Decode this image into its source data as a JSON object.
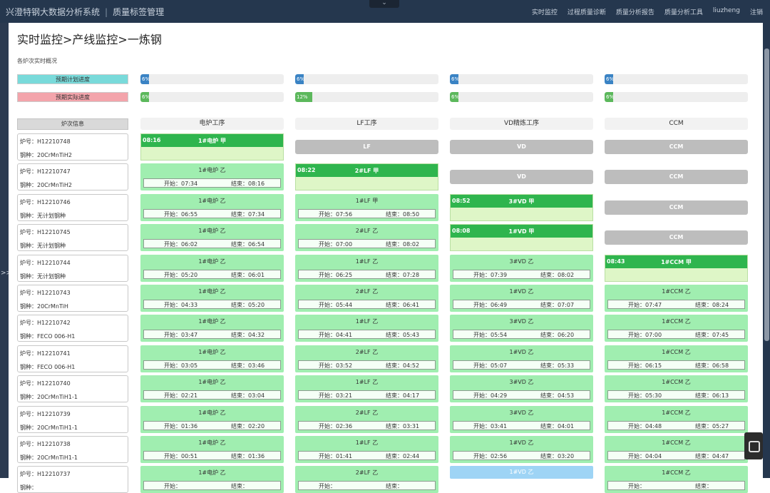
{
  "header": {
    "app_title": "兴澄特钢大数据分析系统",
    "separator": "|",
    "module_title": "质量标签管理",
    "collapse_glyph": "⌄",
    "nav": [
      "实时监控",
      "过程质量诊断",
      "质量分析报告",
      "质量分析工具",
      "liuzheng",
      "注销"
    ]
  },
  "sidebar": {
    "expand_glyph": ">>"
  },
  "page": {
    "breadcrumb": "实时监控>产线监控>一炼钢",
    "section_label": "各炉次实时概况",
    "legend_plan": "预期计划进度",
    "legend_actual": "预期实际进度",
    "info_header": "炉次信息"
  },
  "progress": {
    "plan": [
      6,
      6,
      6,
      6
    ],
    "actual": [
      6,
      12,
      6,
      6
    ],
    "plan_labels": [
      "6%",
      "6%",
      "6%",
      "6%"
    ],
    "actual_labels": [
      "6%",
      "12%",
      "6%",
      "6%"
    ]
  },
  "colors": {
    "plan_bar": "#3a83c4",
    "actual_bar": "#5cb85c",
    "active_header": "#2fb54e",
    "done_cell": "#a0eeb0",
    "pending_cell": "#bdbdbd"
  },
  "stages": [
    "电炉工序",
    "LF工序",
    "VD精炼工序",
    "CCM"
  ],
  "labels": {
    "furnace_prefix": "炉号：",
    "steel_prefix": "钢种：",
    "start_prefix": "开始：",
    "end_prefix": "结束："
  },
  "rows": [
    {
      "furnace": "H12210748",
      "steel": "20CrMnTiH2",
      "cells": [
        {
          "type": "active",
          "time": "08:16",
          "name": "1#电炉 甲"
        },
        {
          "type": "pending",
          "name": "LF"
        },
        {
          "type": "pending",
          "name": "VD"
        },
        {
          "type": "pending",
          "name": "CCM"
        }
      ]
    },
    {
      "furnace": "H12210747",
      "steel": "20CrMnTiH2",
      "cells": [
        {
          "type": "done",
          "name": "1#电炉 乙",
          "start": "07:34",
          "end": "08:16"
        },
        {
          "type": "active",
          "time": "08:22",
          "name": "2#LF 甲"
        },
        {
          "type": "pending",
          "name": "VD"
        },
        {
          "type": "pending",
          "name": "CCM"
        }
      ]
    },
    {
      "furnace": "H12210746",
      "steel": "无计划钢种",
      "cells": [
        {
          "type": "done",
          "name": "1#电炉 乙",
          "start": "06:55",
          "end": "07:34"
        },
        {
          "type": "done",
          "name": "1#LF 甲",
          "start": "07:56",
          "end": "08:50"
        },
        {
          "type": "active",
          "time": "08:52",
          "name": "3#VD 甲"
        },
        {
          "type": "pending",
          "name": "CCM"
        }
      ]
    },
    {
      "furnace": "H12210745",
      "steel": "无计划钢种",
      "cells": [
        {
          "type": "done",
          "name": "1#电炉 乙",
          "start": "06:02",
          "end": "06:54"
        },
        {
          "type": "done",
          "name": "2#LF 乙",
          "start": "07:00",
          "end": "08:02"
        },
        {
          "type": "active",
          "time": "08:08",
          "name": "1#VD 甲"
        },
        {
          "type": "pending",
          "name": "CCM"
        }
      ]
    },
    {
      "furnace": "H12210744",
      "steel": "无计划钢种",
      "cells": [
        {
          "type": "done",
          "name": "1#电炉 乙",
          "start": "05:20",
          "end": "06:01"
        },
        {
          "type": "done",
          "name": "1#LF 乙",
          "start": "06:25",
          "end": "07:28"
        },
        {
          "type": "done",
          "name": "3#VD 乙",
          "start": "07:39",
          "end": "08:02"
        },
        {
          "type": "active",
          "time": "08:43",
          "name": "1#CCM 甲"
        }
      ]
    },
    {
      "furnace": "H12210743",
      "steel": "20CrMnTiH",
      "cells": [
        {
          "type": "done",
          "name": "1#电炉 乙",
          "start": "04:33",
          "end": "05:20"
        },
        {
          "type": "done",
          "name": "2#LF 乙",
          "start": "05:44",
          "end": "06:41"
        },
        {
          "type": "done",
          "name": "1#VD 乙",
          "start": "06:49",
          "end": "07:07"
        },
        {
          "type": "done",
          "name": "1#CCM 乙",
          "start": "07:47",
          "end": "08:24"
        }
      ]
    },
    {
      "furnace": "H12210742",
      "steel": "FECO 006-H1",
      "cells": [
        {
          "type": "done",
          "name": "1#电炉 乙",
          "start": "03:47",
          "end": "04:32"
        },
        {
          "type": "done",
          "name": "1#LF 乙",
          "start": "04:41",
          "end": "05:43"
        },
        {
          "type": "done",
          "name": "3#VD 乙",
          "start": "05:54",
          "end": "06:20"
        },
        {
          "type": "done",
          "name": "1#CCM 乙",
          "start": "07:00",
          "end": "07:45"
        }
      ]
    },
    {
      "furnace": "H12210741",
      "steel": "FECO 006-H1",
      "cells": [
        {
          "type": "done",
          "name": "1#电炉 乙",
          "start": "03:05",
          "end": "03:46"
        },
        {
          "type": "done",
          "name": "2#LF 乙",
          "start": "03:52",
          "end": "04:52"
        },
        {
          "type": "done",
          "name": "1#VD 乙",
          "start": "05:07",
          "end": "05:33"
        },
        {
          "type": "done",
          "name": "1#CCM 乙",
          "start": "06:15",
          "end": "06:58"
        }
      ]
    },
    {
      "furnace": "H12210740",
      "steel": "20CrMnTiH1-1",
      "cells": [
        {
          "type": "done",
          "name": "1#电炉 乙",
          "start": "02:21",
          "end": "03:04"
        },
        {
          "type": "done",
          "name": "1#LF 乙",
          "start": "03:21",
          "end": "04:17"
        },
        {
          "type": "done",
          "name": "3#VD 乙",
          "start": "04:29",
          "end": "04:53"
        },
        {
          "type": "done",
          "name": "1#CCM 乙",
          "start": "05:30",
          "end": "06:13"
        }
      ]
    },
    {
      "furnace": "H12210739",
      "steel": "20CrMnTiH1-1",
      "cells": [
        {
          "type": "done",
          "name": "1#电炉 乙",
          "start": "01:36",
          "end": "02:20"
        },
        {
          "type": "done",
          "name": "2#LF 乙",
          "start": "02:36",
          "end": "03:31"
        },
        {
          "type": "done",
          "name": "3#VD 乙",
          "start": "03:41",
          "end": "04:01"
        },
        {
          "type": "done",
          "name": "1#CCM 乙",
          "start": "04:48",
          "end": "05:27"
        }
      ]
    },
    {
      "furnace": "H12210738",
      "steel": "20CrMnTiH1-1",
      "cells": [
        {
          "type": "done",
          "name": "1#电炉 乙",
          "start": "00:51",
          "end": "01:36"
        },
        {
          "type": "done",
          "name": "1#LF 乙",
          "start": "01:41",
          "end": "02:44"
        },
        {
          "type": "done",
          "name": "1#VD 乙",
          "start": "02:56",
          "end": "03:20"
        },
        {
          "type": "done",
          "name": "1#CCM 乙",
          "start": "04:04",
          "end": "04:47"
        }
      ]
    },
    {
      "furnace": "H12210737",
      "steel": "",
      "cells": [
        {
          "type": "done",
          "name": "1#电炉 乙",
          "start": "",
          "end": ""
        },
        {
          "type": "done",
          "name": "2#LF 乙",
          "start": "",
          "end": ""
        },
        {
          "type": "blue",
          "name": "1#VD 乙"
        },
        {
          "type": "done",
          "name": "1#CCM 乙",
          "start": "",
          "end": ""
        }
      ]
    }
  ]
}
